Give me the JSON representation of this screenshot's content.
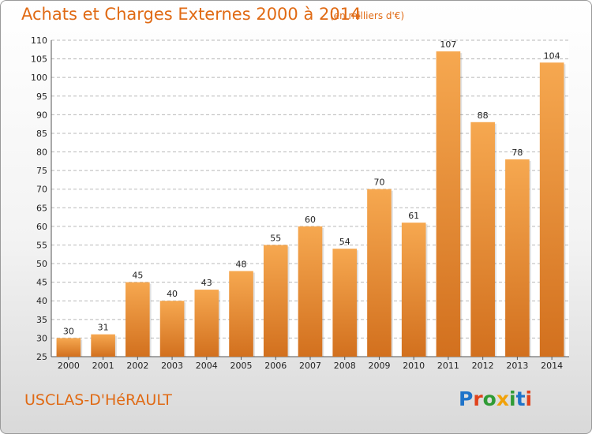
{
  "title": "Achats et Charges Externes 2000 à 2014",
  "subtitle": "(en milliers d'€)",
  "place": "USCLAS-D'HéRAULT",
  "logo": {
    "text": "Proxiti",
    "letter_colors": [
      "#1f73c9",
      "#e0421b",
      "#2f9b35",
      "#f1a20a",
      "#2f9b35",
      "#1f73c9",
      "#e0421b"
    ]
  },
  "colors": {
    "accent": "#e06a14",
    "bar_top": "#f6a850",
    "bar_bottom": "#d2701e",
    "grid": "#b8b8b8"
  },
  "chart_data": {
    "type": "bar",
    "categories": [
      "2000",
      "2001",
      "2002",
      "2003",
      "2004",
      "2005",
      "2006",
      "2007",
      "2008",
      "2009",
      "2010",
      "2011",
      "2012",
      "2013",
      "2014"
    ],
    "values": [
      30,
      31,
      45,
      40,
      43,
      48,
      55,
      60,
      54,
      70,
      61,
      107,
      88,
      78,
      104
    ],
    "value_labels": [
      "30",
      "31",
      "45",
      "40",
      "43",
      "48",
      "55",
      "60",
      "54",
      "70",
      "61",
      "107",
      "88",
      "78",
      "104"
    ],
    "ylim": [
      25,
      110
    ],
    "yticks": [
      25,
      30,
      35,
      40,
      45,
      50,
      55,
      60,
      65,
      70,
      75,
      80,
      85,
      90,
      95,
      100,
      105,
      110
    ],
    "grid": "horizontal dashed",
    "xlabel": "",
    "ylabel": ""
  }
}
